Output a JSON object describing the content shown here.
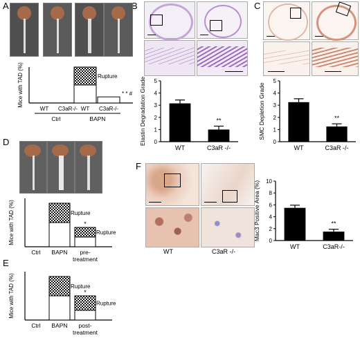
{
  "panels": {
    "A": {
      "letter": "A"
    },
    "B": {
      "letter": "B"
    },
    "C": {
      "letter": "C"
    },
    "D": {
      "letter": "D"
    },
    "E": {
      "letter": "E"
    },
    "F": {
      "letter": "F"
    }
  },
  "chart_data": [
    {
      "id": "A",
      "type": "bar",
      "ylabel": "Mice with TAD (%)",
      "categories": [
        "WT",
        "C3aR-/-",
        "WT",
        "C3aR-/-"
      ],
      "groups": [
        "Ctrl",
        "BAPN"
      ],
      "ylim": [
        0,
        100
      ],
      "series": [
        {
          "name": "",
          "values": [
            0,
            0,
            50,
            17
          ]
        },
        {
          "name": "Rupture",
          "values": [
            0,
            0,
            50,
            0
          ]
        }
      ],
      "annotations": [
        "Rupture",
        "* * #"
      ]
    },
    {
      "id": "B",
      "type": "bar",
      "ylabel": "Elastin Degradation Grade",
      "categories": [
        "WT",
        "C3aR -/-"
      ],
      "values": [
        3.15,
        1.0
      ],
      "errors": [
        0.28,
        0.28
      ],
      "ylim": [
        0,
        5
      ],
      "yticks": [
        0,
        1,
        2,
        3,
        4,
        5
      ],
      "annotations": [
        "**"
      ]
    },
    {
      "id": "C",
      "type": "bar",
      "ylabel": "SMC Depletion Grade",
      "categories": [
        "WT",
        "C3aR -/-"
      ],
      "values": [
        3.25,
        1.25
      ],
      "errors": [
        0.28,
        0.22
      ],
      "ylim": [
        0,
        5
      ],
      "yticks": [
        0,
        1,
        2,
        3,
        4,
        5
      ],
      "annotations": [
        "**"
      ]
    },
    {
      "id": "D",
      "type": "bar",
      "ylabel": "Mice with TAD (%)",
      "categories": [
        "Ctrl",
        "BAPN",
        "pre-treatment"
      ],
      "category_lines": [
        [
          "Ctrl"
        ],
        [
          "BAPN"
        ],
        [
          "pre-",
          "treatment"
        ]
      ],
      "ylim": [
        0,
        100
      ],
      "series": [
        {
          "name": "",
          "values": [
            0,
            50,
            20
          ]
        },
        {
          "name": "Rupture",
          "values": [
            0,
            40,
            20
          ]
        }
      ],
      "annotations": [
        "Rupture",
        "Rupture",
        "*"
      ]
    },
    {
      "id": "E",
      "type": "bar",
      "ylabel": "Mice with TAD (%)",
      "categories": [
        "Ctrl",
        "BAPN",
        "post-treatment"
      ],
      "category_lines": [
        [
          "Ctrl"
        ],
        [
          "BAPN"
        ],
        [
          "post-",
          "treatment"
        ]
      ],
      "ylim": [
        0,
        100
      ],
      "series": [
        {
          "name": "",
          "values": [
            0,
            50,
            20
          ]
        },
        {
          "name": "Rupture",
          "values": [
            0,
            40,
            30
          ]
        }
      ],
      "annotations": [
        "Rupture",
        "Rupture",
        "*"
      ]
    },
    {
      "id": "F",
      "type": "bar",
      "ylabel": "Mac3 Positive Area (%)",
      "categories": [
        "WT",
        "C3aR-/-"
      ],
      "values": [
        5.5,
        1.5
      ],
      "errors": [
        0.45,
        0.4
      ],
      "ylim": [
        0,
        10
      ],
      "yticks": [
        0,
        2,
        4,
        6,
        8,
        10
      ],
      "annotations": [
        "**"
      ]
    }
  ],
  "image_labels": {
    "F_wt": "WT",
    "F_ko": "C3aR -/-"
  },
  "colors": {
    "bar": "#000000",
    "rupture_fill": "#111111",
    "photo_bg": "#4d4d4d",
    "vessel": "#c7a7d9",
    "stain_red": "#d29a86"
  }
}
